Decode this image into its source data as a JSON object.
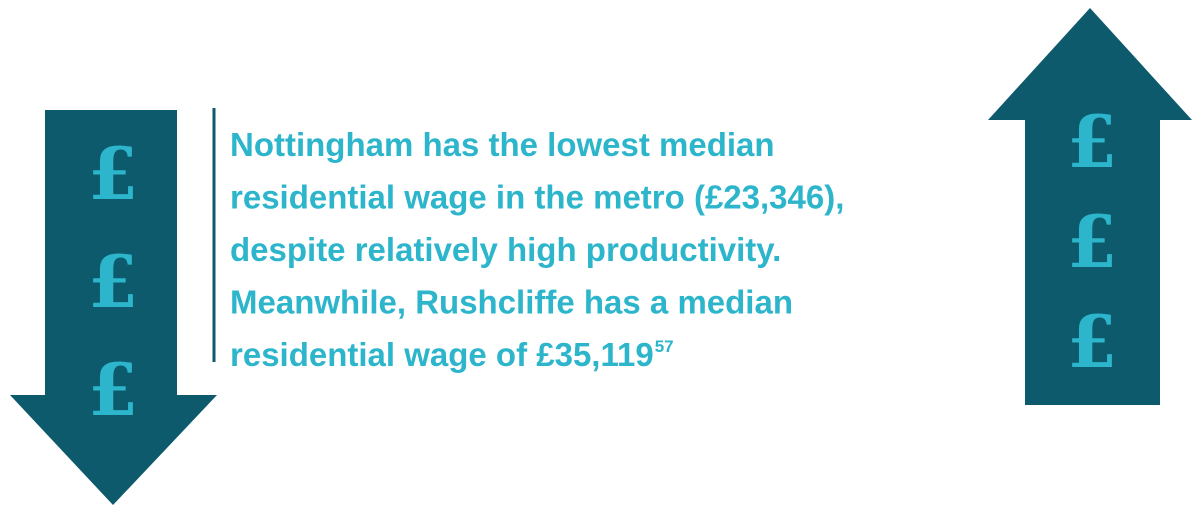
{
  "left_arrow": {
    "symbols": [
      "£",
      "£",
      "£"
    ]
  },
  "right_arrow": {
    "symbols": [
      "£",
      "£",
      "£"
    ]
  },
  "statement": {
    "lines": [
      "Nottingham has the lowest median",
      "residential wage in the metro (£23,346),",
      "despite relatively high productivity.",
      "Meanwhile, Rushcliffe has a median",
      "residential wage of £35,119"
    ],
    "footnote": "57"
  }
}
